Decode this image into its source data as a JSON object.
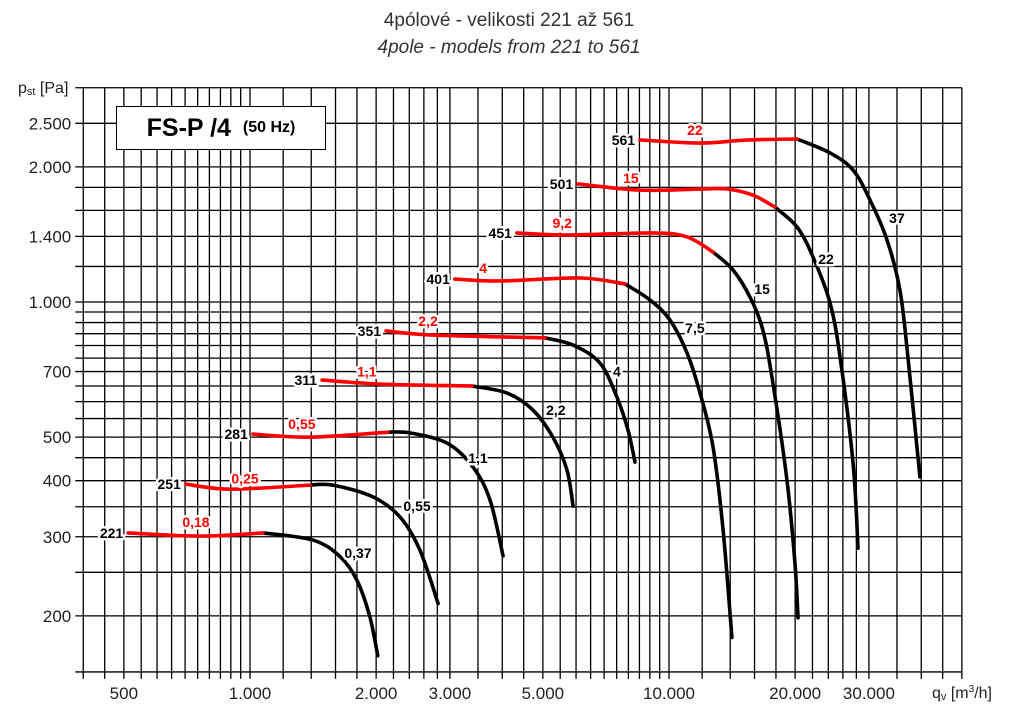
{
  "title": "4pólové - velikosti 221 až 561",
  "subtitle": "4pole - models from 221 to 561",
  "legend_box": {
    "name": "FS-P /4",
    "frequency": "(50 Hz)"
  },
  "colors": {
    "red": "#ff0000",
    "black": "#000000",
    "grid": "#000000"
  },
  "chart_data": {
    "type": "line",
    "title": "4pólové - velikosti 221 až 561",
    "xlabel": {
      "symbol": "q",
      "sub": "v",
      "unit_pre": "[m",
      "unit_sup": "3",
      "unit_post": "/h]"
    },
    "ylabel": {
      "symbol": "p",
      "sub": "st",
      "unit": "[Pa]"
    },
    "xscale": "log",
    "yscale": "log",
    "xlim": [
      400,
      50000
    ],
    "ylim": [
      150,
      3000
    ],
    "grid": true,
    "x_grid": [
      400,
      450,
      500,
      550,
      600,
      650,
      700,
      750,
      800,
      850,
      900,
      950,
      1000,
      1200,
      1400,
      1600,
      1800,
      2000,
      2200,
      2400,
      2600,
      2800,
      3000,
      3500,
      4000,
      4500,
      5000,
      5500,
      6000,
      6500,
      7000,
      7500,
      8000,
      8500,
      9000,
      9500,
      10000,
      12000,
      14000,
      16000,
      18000,
      20000,
      22000,
      24000,
      26000,
      28000,
      30000,
      35000,
      40000,
      45000,
      50000
    ],
    "y_grid": [
      150,
      200,
      250,
      300,
      350,
      400,
      450,
      500,
      550,
      600,
      650,
      700,
      750,
      800,
      850,
      900,
      950,
      1000,
      1200,
      1400,
      1600,
      1800,
      2000,
      2500,
      3000
    ],
    "x_ticks": [
      {
        "v": 500,
        "label": "500"
      },
      {
        "v": 1000,
        "label": "1.000"
      },
      {
        "v": 2000,
        "label": "2.000"
      },
      {
        "v": 3000,
        "label": "3.000"
      },
      {
        "v": 5000,
        "label": "5.000"
      },
      {
        "v": 10000,
        "label": "10.000"
      },
      {
        "v": 20000,
        "label": "20.000"
      },
      {
        "v": 30000,
        "label": "30.000"
      }
    ],
    "y_ticks": [
      {
        "v": 2500,
        "label": "2.500"
      },
      {
        "v": 2000,
        "label": "2.000"
      },
      {
        "v": 1400,
        "label": "1.400"
      },
      {
        "v": 1000,
        "label": "1.000"
      },
      {
        "v": 700,
        "label": "700"
      },
      {
        "v": 500,
        "label": "500"
      },
      {
        "v": 400,
        "label": "400"
      },
      {
        "v": 300,
        "label": "300"
      },
      {
        "v": 200,
        "label": "200"
      }
    ],
    "series": [
      {
        "name": "221",
        "red_power": "0,18",
        "black_power": "0,37",
        "red": [
          [
            512,
            306
          ],
          [
            760,
            301
          ],
          [
            1074,
            306
          ]
        ],
        "black": [
          [
            1074,
            306
          ],
          [
            1413,
            295
          ],
          [
            1640,
            271
          ],
          [
            1800,
            240
          ],
          [
            1932,
            199
          ],
          [
            2018,
            163
          ]
        ],
        "red_label": [
          743,
          324
        ],
        "black_label": [
          1810,
          276
        ]
      },
      {
        "name": "251",
        "red_power": "0,25",
        "black_power": "0,55",
        "red": [
          [
            703,
            393
          ],
          [
            896,
            383
          ],
          [
            1390,
            391
          ]
        ],
        "black": [
          [
            1390,
            391
          ],
          [
            1578,
            391
          ],
          [
            1966,
            368
          ],
          [
            2281,
            332
          ],
          [
            2545,
            280
          ],
          [
            2812,
            213
          ]
        ],
        "red_label": [
          973,
          404
        ],
        "black_label": [
          2504,
          351
        ]
      },
      {
        "name": "281",
        "red_power": "0,55",
        "black_power": "1,1",
        "red": [
          [
            1016,
            508
          ],
          [
            1390,
            500
          ],
          [
            2134,
            513
          ]
        ],
        "black": [
          [
            2134,
            513
          ],
          [
            2410,
            511
          ],
          [
            2952,
            485
          ],
          [
            3405,
            429
          ],
          [
            3740,
            362
          ],
          [
            4018,
            272
          ]
        ],
        "red_label": [
          1330,
          535
        ],
        "black_label": [
          3500,
          449
        ]
      },
      {
        "name": "311",
        "red_power": "1,1",
        "black_power": "2,2",
        "red": [
          [
            1486,
            670
          ],
          [
            2075,
            656
          ],
          [
            3388,
            650
          ]
        ],
        "black": [
          [
            3388,
            650
          ],
          [
            4104,
            627
          ],
          [
            4731,
            575
          ],
          [
            5282,
            500
          ],
          [
            5710,
            422
          ],
          [
            5903,
            351
          ]
        ],
        "red_label": [
          1900,
          701
        ],
        "black_label": [
          5370,
          575
        ]
      },
      {
        "name": "351",
        "red_power": "2,2",
        "black_power": "4",
        "red": [
          [
            2112,
            862
          ],
          [
            2735,
            844
          ],
          [
            5060,
            832
          ]
        ],
        "black": [
          [
            5060,
            832
          ],
          [
            5900,
            802
          ],
          [
            6845,
            731
          ],
          [
            7510,
            614
          ],
          [
            7980,
            519
          ],
          [
            8295,
            440
          ]
        ],
        "red_label": [
          2660,
          908
        ],
        "black_label": [
          7510,
          701
        ]
      },
      {
        "name": "401",
        "red_power": "4",
        "black_power": "7,5",
        "red": [
          [
            3083,
            1125
          ],
          [
            3953,
            1114
          ],
          [
            6135,
            1131
          ],
          [
            7855,
            1097
          ]
        ],
        "black": [
          [
            7855,
            1097
          ],
          [
            9015,
            1010
          ],
          [
            10050,
            912
          ],
          [
            11040,
            770
          ],
          [
            11860,
            627
          ],
          [
            12740,
            475
          ],
          [
            13460,
            311
          ],
          [
            14130,
            179
          ]
        ],
        "red_label": [
          3600,
          1190
        ],
        "black_label": [
          11530,
          875
        ]
      },
      {
        "name": "451",
        "red_power": "9,2",
        "black_power": "15",
        "red": [
          [
            4335,
            1425
          ],
          [
            5710,
            1410
          ],
          [
            9160,
            1425
          ],
          [
            11040,
            1396
          ],
          [
            12740,
            1292
          ]
        ],
        "black": [
          [
            12740,
            1292
          ],
          [
            14220,
            1178
          ],
          [
            15600,
            1026
          ],
          [
            16750,
            866
          ],
          [
            17700,
            660
          ],
          [
            19120,
            401
          ],
          [
            19980,
            262
          ],
          [
            20320,
            198
          ]
        ],
        "red_label": [
          5560,
          1500
        ],
        "black_label": [
          16680,
          1069
        ]
      },
      {
        "name": "501",
        "red_power": "15",
        "black_power": "22",
        "red": [
          [
            6070,
            1832
          ],
          [
            8530,
            1775
          ],
          [
            11860,
            1785
          ],
          [
            13750,
            1785
          ],
          [
            15850,
            1730
          ],
          [
            17900,
            1627
          ]
        ],
        "black": [
          [
            17900,
            1627
          ],
          [
            20210,
            1469
          ],
          [
            22070,
            1259
          ],
          [
            24230,
            995
          ],
          [
            25600,
            754
          ],
          [
            27500,
            437
          ],
          [
            28260,
            283
          ]
        ],
        "red_label": [
          8110,
          1888
        ],
        "black_label": [
          23700,
          1247
        ]
      },
      {
        "name": "561",
        "red_power": "22",
        "black_power": "37",
        "red": [
          [
            8530,
            2295
          ],
          [
            11860,
            2259
          ],
          [
            15350,
            2295
          ],
          [
            20210,
            2307
          ]
        ],
        "black": [
          [
            20210,
            2307
          ],
          [
            24230,
            2148
          ],
          [
            27500,
            1967
          ],
          [
            30180,
            1687
          ],
          [
            33140,
            1374
          ],
          [
            35570,
            1063
          ],
          [
            37170,
            754
          ],
          [
            39700,
            408
          ]
        ],
        "red_label": [
          11530,
          2416
        ],
        "black_label": [
          35000,
          1538
        ]
      }
    ]
  }
}
